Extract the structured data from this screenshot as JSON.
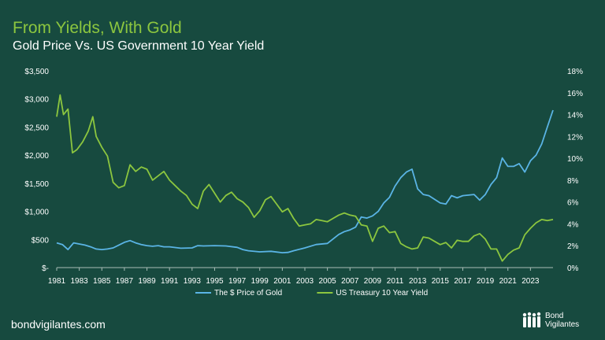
{
  "header": {
    "title": "From Yields, With Gold",
    "subtitle": "Gold Price Vs. US Government 10 Year Yield"
  },
  "footer": {
    "url": "bondvigilantes.com",
    "brand_line1": "Bond",
    "brand_line2": "Vigilantes"
  },
  "colors": {
    "background": "#174a3f",
    "gold_series": "#5ab4e5",
    "yield_series": "#8cc63f",
    "title_accent": "#8cc63f"
  },
  "chart_data": {
    "type": "line",
    "x_ticks": [
      1981,
      1983,
      1985,
      1987,
      1989,
      1991,
      1993,
      1995,
      1997,
      1999,
      2001,
      2003,
      2005,
      2007,
      2009,
      2011,
      2013,
      2015,
      2017,
      2019,
      2021,
      2023
    ],
    "xlim": [
      1981,
      2025
    ],
    "y_left": {
      "ticks": [
        "$-",
        "$500",
        "$1,000",
        "$1,500",
        "$2,000",
        "$2,500",
        "$3,000",
        "$3,500"
      ],
      "lim": [
        0,
        3500
      ]
    },
    "y_right": {
      "ticks": [
        "0%",
        "2%",
        "4%",
        "6%",
        "8%",
        "10%",
        "12%",
        "14%",
        "16%",
        "18%"
      ],
      "lim": [
        0,
        18
      ]
    },
    "legend": "bottom-center",
    "grid": false,
    "series": [
      {
        "name": "The $ Price of Gold",
        "axis": "left",
        "x": [
          1981,
          1981.5,
          1982,
          1982.5,
          1983,
          1983.5,
          1984,
          1984.5,
          1985,
          1985.5,
          1986,
          1986.5,
          1987,
          1987.5,
          1988,
          1988.5,
          1989,
          1989.5,
          1990,
          1990.5,
          1991,
          1992,
          1993,
          1993.5,
          1994,
          1995,
          1996,
          1997,
          1997.5,
          1998,
          1999,
          2000,
          2001,
          2001.5,
          2002,
          2003,
          2004,
          2005,
          2006,
          2006.5,
          2007,
          2007.5,
          2008,
          2008.5,
          2009,
          2009.5,
          2010,
          2010.5,
          2011,
          2011.5,
          2012,
          2012.5,
          2013,
          2013.5,
          2014,
          2015,
          2015.5,
          2016,
          2016.5,
          2017,
          2018,
          2018.5,
          2019,
          2019.5,
          2020,
          2020.5,
          2021,
          2021.5,
          2022,
          2022.5,
          2023,
          2023.5,
          2024,
          2024.5,
          2025
        ],
        "values": [
          440,
          410,
          320,
          440,
          420,
          400,
          370,
          330,
          320,
          330,
          350,
          400,
          450,
          480,
          440,
          410,
          390,
          380,
          390,
          370,
          370,
          345,
          350,
          390,
          385,
          390,
          385,
          360,
          320,
          300,
          280,
          290,
          265,
          270,
          300,
          350,
          410,
          430,
          590,
          640,
          670,
          720,
          900,
          880,
          920,
          1000,
          1150,
          1250,
          1450,
          1600,
          1700,
          1750,
          1400,
          1300,
          1280,
          1150,
          1130,
          1280,
          1240,
          1280,
          1300,
          1200,
          1300,
          1480,
          1600,
          1950,
          1800,
          1800,
          1850,
          1700,
          1900,
          2000,
          2200,
          2500,
          2800
        ]
      },
      {
        "name": "US Treasury 10 Year Yield",
        "axis": "right",
        "x": [
          1981,
          1981.3,
          1981.6,
          1982,
          1982.4,
          1982.8,
          1983.3,
          1983.8,
          1984.2,
          1984.5,
          1985,
          1985.5,
          1986,
          1986.5,
          1987,
          1987.5,
          1988,
          1988.5,
          1989,
          1989.5,
          1990,
          1990.5,
          1991,
          1991.5,
          1992,
          1992.5,
          1993,
          1993.5,
          1994,
          1994.5,
          1995,
          1995.5,
          1996,
          1996.5,
          1997,
          1997.5,
          1998,
          1998.5,
          1999,
          1999.5,
          2000,
          2000.5,
          2001,
          2001.5,
          2002,
          2002.5,
          2003,
          2003.5,
          2004,
          2004.5,
          2005,
          2005.5,
          2006,
          2006.5,
          2007,
          2007.5,
          2008,
          2008.5,
          2009,
          2009.5,
          2010,
          2010.5,
          2011,
          2011.5,
          2012,
          2012.5,
          2013,
          2013.5,
          2014,
          2014.5,
          2015,
          2015.5,
          2016,
          2016.5,
          2017,
          2017.5,
          2018,
          2018.5,
          2019,
          2019.5,
          2020,
          2020.5,
          2021,
          2021.5,
          2022,
          2022.5,
          2023,
          2023.5,
          2024,
          2024.5,
          2025
        ],
        "values": [
          13.8,
          15.8,
          14.0,
          14.5,
          10.5,
          10.8,
          11.5,
          12.5,
          13.8,
          12.0,
          11.0,
          10.2,
          7.8,
          7.3,
          7.5,
          9.4,
          8.8,
          9.2,
          9.0,
          8.0,
          8.4,
          8.8,
          8.0,
          7.5,
          7.0,
          6.6,
          5.8,
          5.4,
          7.0,
          7.6,
          6.8,
          6.0,
          6.6,
          6.9,
          6.3,
          6.0,
          5.5,
          4.6,
          5.2,
          6.2,
          6.5,
          5.8,
          5.1,
          5.4,
          4.5,
          3.8,
          3.9,
          4.0,
          4.4,
          4.3,
          4.2,
          4.5,
          4.8,
          5.0,
          4.8,
          4.7,
          3.9,
          3.8,
          2.4,
          3.6,
          3.8,
          3.2,
          3.3,
          2.2,
          1.9,
          1.7,
          1.8,
          2.8,
          2.7,
          2.4,
          2.1,
          2.3,
          1.8,
          2.5,
          2.4,
          2.4,
          2.9,
          3.1,
          2.6,
          1.7,
          1.7,
          0.6,
          1.2,
          1.6,
          1.8,
          3.0,
          3.6,
          4.1,
          4.4,
          4.3,
          4.4
        ]
      }
    ]
  }
}
